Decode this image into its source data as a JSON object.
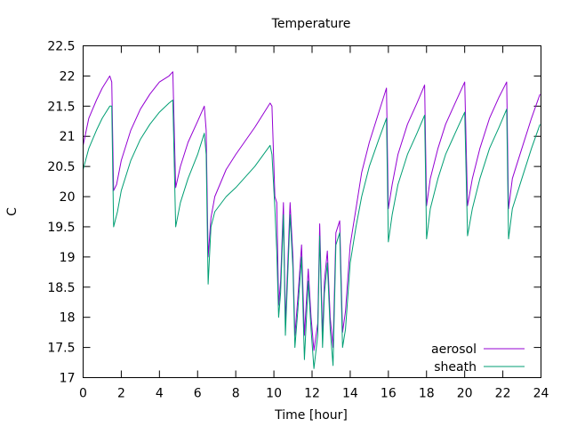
{
  "chart_data": {
    "type": "line",
    "title": "Temperature",
    "xlabel": "Time [hour]",
    "ylabel": "C",
    "xlim": [
      0,
      24
    ],
    "ylim": [
      17,
      22.5
    ],
    "xticks": [
      0,
      2,
      4,
      6,
      8,
      10,
      12,
      14,
      16,
      18,
      20,
      22,
      24
    ],
    "yticks": [
      17,
      17.5,
      18,
      18.5,
      19,
      19.5,
      20,
      20.5,
      21,
      21.5,
      22,
      22.5
    ],
    "grid": false,
    "legend_position": "bottom-right",
    "series": [
      {
        "name": "aerosol",
        "color": "#9400d3",
        "points": [
          [
            0,
            20.85
          ],
          [
            0.3,
            21.3
          ],
          [
            0.7,
            21.6
          ],
          [
            1.0,
            21.8
          ],
          [
            1.4,
            22.0
          ],
          [
            1.5,
            21.9
          ],
          [
            1.6,
            20.1
          ],
          [
            1.75,
            20.2
          ],
          [
            2.0,
            20.6
          ],
          [
            2.5,
            21.1
          ],
          [
            3.0,
            21.45
          ],
          [
            3.5,
            21.7
          ],
          [
            4.0,
            21.9
          ],
          [
            4.5,
            22.0
          ],
          [
            4.7,
            22.07
          ],
          [
            4.85,
            20.15
          ],
          [
            5.1,
            20.5
          ],
          [
            5.5,
            20.9
          ],
          [
            6.0,
            21.25
          ],
          [
            6.35,
            21.5
          ],
          [
            6.45,
            21.1
          ],
          [
            6.55,
            19.0
          ],
          [
            6.7,
            19.65
          ],
          [
            6.9,
            20.0
          ],
          [
            7.5,
            20.45
          ],
          [
            8.0,
            20.7
          ],
          [
            9.0,
            21.15
          ],
          [
            9.8,
            21.55
          ],
          [
            9.9,
            21.5
          ],
          [
            10.05,
            20.0
          ],
          [
            10.15,
            19.9
          ],
          [
            10.25,
            18.2
          ],
          [
            10.35,
            18.6
          ],
          [
            10.5,
            19.9
          ],
          [
            10.6,
            17.9
          ],
          [
            10.75,
            19.1
          ],
          [
            10.85,
            19.9
          ],
          [
            11.0,
            19.0
          ],
          [
            11.1,
            17.7
          ],
          [
            11.25,
            18.3
          ],
          [
            11.45,
            19.2
          ],
          [
            11.6,
            17.7
          ],
          [
            11.8,
            18.8
          ],
          [
            11.95,
            18.0
          ],
          [
            12.1,
            17.45
          ],
          [
            12.3,
            17.9
          ],
          [
            12.4,
            19.55
          ],
          [
            12.55,
            17.7
          ],
          [
            12.65,
            18.6
          ],
          [
            12.8,
            19.1
          ],
          [
            12.95,
            18.0
          ],
          [
            13.1,
            17.5
          ],
          [
            13.25,
            19.4
          ],
          [
            13.45,
            19.6
          ],
          [
            13.6,
            17.75
          ],
          [
            13.75,
            18.1
          ],
          [
            14.0,
            19.2
          ],
          [
            14.3,
            19.8
          ],
          [
            14.6,
            20.4
          ],
          [
            15.0,
            20.9
          ],
          [
            15.5,
            21.4
          ],
          [
            15.9,
            21.8
          ],
          [
            16.0,
            19.8
          ],
          [
            16.2,
            20.2
          ],
          [
            16.5,
            20.7
          ],
          [
            17.0,
            21.2
          ],
          [
            17.5,
            21.55
          ],
          [
            17.9,
            21.85
          ],
          [
            18.0,
            19.85
          ],
          [
            18.2,
            20.3
          ],
          [
            18.6,
            20.8
          ],
          [
            19.0,
            21.2
          ],
          [
            19.5,
            21.55
          ],
          [
            20.0,
            21.9
          ],
          [
            20.15,
            19.85
          ],
          [
            20.4,
            20.3
          ],
          [
            20.8,
            20.8
          ],
          [
            21.3,
            21.3
          ],
          [
            21.8,
            21.65
          ],
          [
            22.2,
            21.9
          ],
          [
            22.3,
            19.8
          ],
          [
            22.5,
            20.3
          ],
          [
            23.0,
            20.8
          ],
          [
            23.5,
            21.3
          ],
          [
            23.95,
            21.7
          ]
        ]
      },
      {
        "name": "sheath",
        "color": "#009e73",
        "points": [
          [
            0,
            20.45
          ],
          [
            0.3,
            20.8
          ],
          [
            0.7,
            21.1
          ],
          [
            1.0,
            21.3
          ],
          [
            1.4,
            21.5
          ],
          [
            1.5,
            21.5
          ],
          [
            1.6,
            19.5
          ],
          [
            1.8,
            19.75
          ],
          [
            2.0,
            20.1
          ],
          [
            2.5,
            20.6
          ],
          [
            3.0,
            20.95
          ],
          [
            3.5,
            21.2
          ],
          [
            4.0,
            21.4
          ],
          [
            4.5,
            21.55
          ],
          [
            4.7,
            21.6
          ],
          [
            4.85,
            19.5
          ],
          [
            5.1,
            19.9
          ],
          [
            5.5,
            20.3
          ],
          [
            6.0,
            20.7
          ],
          [
            6.35,
            21.05
          ],
          [
            6.45,
            20.7
          ],
          [
            6.55,
            18.55
          ],
          [
            6.7,
            19.5
          ],
          [
            6.9,
            19.75
          ],
          [
            7.5,
            20.0
          ],
          [
            8.0,
            20.15
          ],
          [
            9.0,
            20.5
          ],
          [
            9.8,
            20.85
          ],
          [
            9.9,
            20.7
          ],
          [
            10.05,
            19.8
          ],
          [
            10.15,
            19.1
          ],
          [
            10.25,
            18.0
          ],
          [
            10.35,
            18.4
          ],
          [
            10.5,
            19.7
          ],
          [
            10.6,
            17.7
          ],
          [
            10.75,
            18.9
          ],
          [
            10.85,
            19.7
          ],
          [
            11.0,
            18.8
          ],
          [
            11.1,
            17.5
          ],
          [
            11.25,
            18.1
          ],
          [
            11.45,
            19.0
          ],
          [
            11.6,
            17.3
          ],
          [
            11.8,
            18.6
          ],
          [
            11.95,
            17.8
          ],
          [
            12.1,
            17.15
          ],
          [
            12.3,
            17.7
          ],
          [
            12.4,
            19.35
          ],
          [
            12.55,
            17.5
          ],
          [
            12.65,
            18.4
          ],
          [
            12.8,
            18.9
          ],
          [
            12.95,
            17.8
          ],
          [
            13.1,
            17.2
          ],
          [
            13.25,
            19.2
          ],
          [
            13.45,
            19.4
          ],
          [
            13.6,
            17.5
          ],
          [
            13.75,
            17.8
          ],
          [
            14.0,
            18.9
          ],
          [
            14.3,
            19.5
          ],
          [
            14.6,
            20.0
          ],
          [
            15.0,
            20.5
          ],
          [
            15.5,
            20.95
          ],
          [
            15.9,
            21.3
          ],
          [
            16.0,
            19.25
          ],
          [
            16.2,
            19.7
          ],
          [
            16.5,
            20.2
          ],
          [
            17.0,
            20.7
          ],
          [
            17.5,
            21.05
          ],
          [
            17.9,
            21.35
          ],
          [
            18.0,
            19.3
          ],
          [
            18.2,
            19.8
          ],
          [
            18.6,
            20.3
          ],
          [
            19.0,
            20.7
          ],
          [
            19.5,
            21.05
          ],
          [
            20.0,
            21.4
          ],
          [
            20.15,
            19.35
          ],
          [
            20.4,
            19.8
          ],
          [
            20.8,
            20.3
          ],
          [
            21.3,
            20.8
          ],
          [
            21.8,
            21.15
          ],
          [
            22.2,
            21.45
          ],
          [
            22.3,
            19.3
          ],
          [
            22.5,
            19.8
          ],
          [
            23.0,
            20.3
          ],
          [
            23.5,
            20.8
          ],
          [
            23.95,
            21.2
          ]
        ]
      }
    ]
  }
}
